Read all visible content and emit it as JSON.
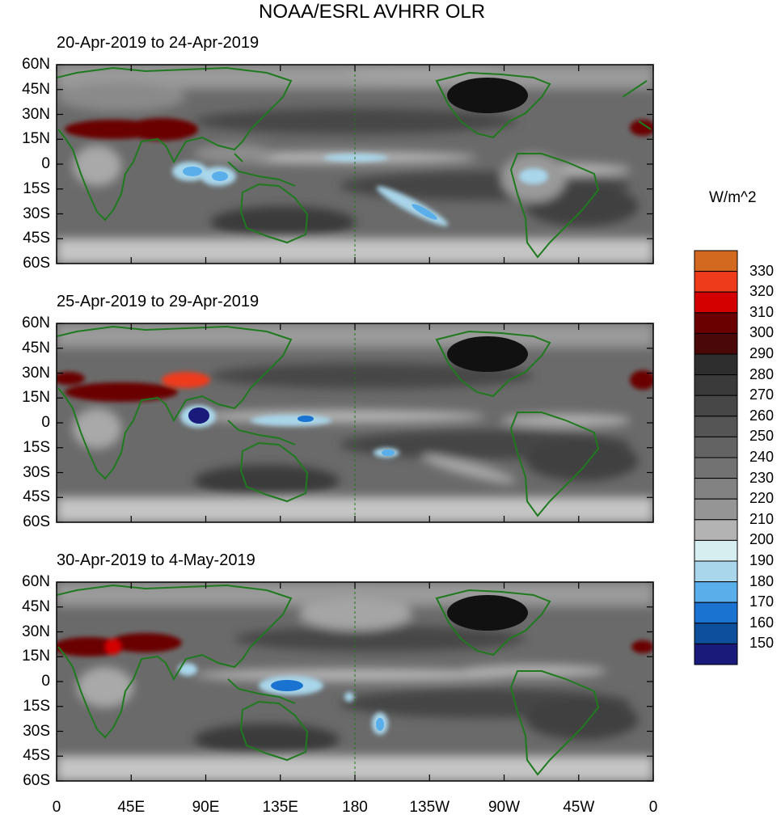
{
  "title": "NOAA/ESRL AVHRR OLR",
  "panels": [
    {
      "label": "20-Apr-2019 to 24-Apr-2019"
    },
    {
      "label": "25-Apr-2019 to 29-Apr-2019"
    },
    {
      "label": "30-Apr-2019 to 4-May-2019"
    }
  ],
  "lat_ticks": [
    "60N",
    "45N",
    "30N",
    "15N",
    "0",
    "15S",
    "30S",
    "45S",
    "60S"
  ],
  "lon_ticks": [
    "0",
    "45E",
    "90E",
    "135E",
    "180",
    "135W",
    "90W",
    "45W",
    "0"
  ],
  "colorbar": {
    "unit": "W/m^2",
    "labels": [
      "330",
      "320",
      "310",
      "300",
      "290",
      "280",
      "270",
      "260",
      "250",
      "240",
      "230",
      "220",
      "210",
      "200",
      "190",
      "180",
      "170",
      "160",
      "150"
    ],
    "colors": [
      "#d2691e",
      "#ee3b1c",
      "#d40000",
      "#6b0000",
      "#4a0808",
      "#2e2e2e",
      "#3a3a3a",
      "#474747",
      "#555555",
      "#636363",
      "#727272",
      "#828282",
      "#959595",
      "#b3b3b3",
      "#d6eef0",
      "#a9d6ea",
      "#5aaeea",
      "#1a73d0",
      "#0d4f9a",
      "#1a1a7a"
    ]
  },
  "colors": {
    "coast": "#1f7a1f",
    "background_field": "#7a7a7a",
    "frame": "#000000"
  }
}
